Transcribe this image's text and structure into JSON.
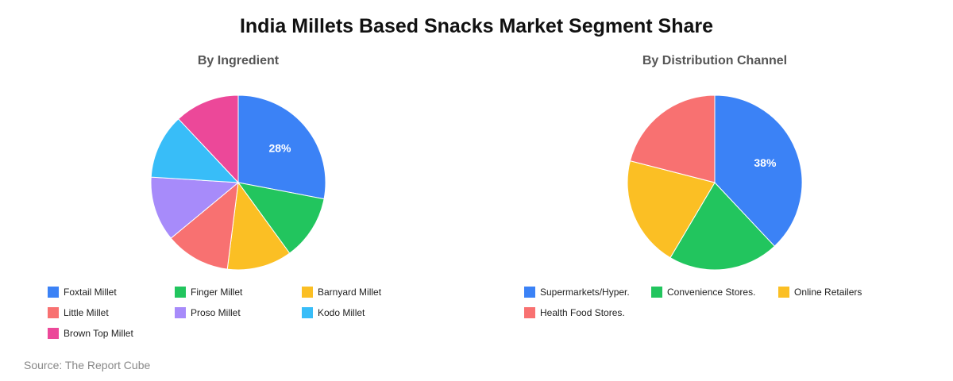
{
  "title": "India Millets Based Snacks Market Segment Share",
  "source": "Source: The Report Cube",
  "chart_data": [
    {
      "type": "pie",
      "title": "By Ingredient",
      "categories": [
        "Foxtail Millet",
        "Finger Millet",
        "Barnyard Millet",
        "Little Millet",
        "Proso Millet",
        "Kodo Millet",
        "Brown Top Millet"
      ],
      "values": [
        28,
        12,
        12,
        12,
        12,
        12,
        12
      ],
      "colors": [
        "#3b82f6",
        "#22c55e",
        "#fbbf24",
        "#f87171",
        "#a78bfa",
        "#38bdf8",
        "#ec4899"
      ],
      "data_labels": [
        "28%",
        "",
        "",
        "",
        "",
        "",
        ""
      ],
      "legend_position": "bottom"
    },
    {
      "type": "pie",
      "title": "By Distribution Channel",
      "categories": [
        "Supermarkets/Hyper.",
        "Convenience Stores.",
        "Online Retailers",
        "Health Food Stores."
      ],
      "values": [
        38,
        20.5,
        20.5,
        21
      ],
      "colors": [
        "#3b82f6",
        "#22c55e",
        "#fbbf24",
        "#f87171"
      ],
      "data_labels": [
        "38%",
        "",
        "",
        ""
      ],
      "legend_position": "bottom"
    }
  ]
}
